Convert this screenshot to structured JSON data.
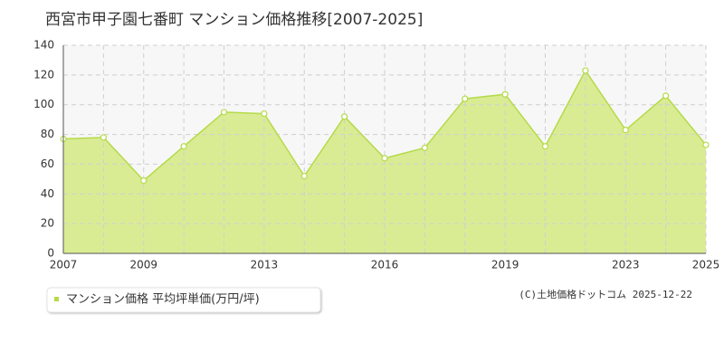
{
  "chart_data": {
    "type": "area",
    "title": "西宮市甲子園七番町 マンション価格推移[2007-2025]",
    "categories": [
      "2007",
      null,
      "2009",
      null,
      null,
      "2013",
      null,
      null,
      "2016",
      null,
      null,
      "2019",
      null,
      null,
      "2023",
      null,
      "2025"
    ],
    "series": [
      {
        "name": "マンション価格 平均坪単価(万円/坪)",
        "color": "#b5da4a",
        "values": [
          77,
          78,
          49,
          72,
          95,
          94,
          52,
          92,
          64,
          71,
          104,
          107,
          72,
          123,
          83,
          106,
          73
        ]
      }
    ],
    "ylim": [
      0,
      140
    ],
    "yticks": [
      0,
      20,
      40,
      60,
      80,
      100,
      120,
      140
    ],
    "grid": true,
    "credit": "(C)土地価格ドットコム 2025-12-22"
  }
}
